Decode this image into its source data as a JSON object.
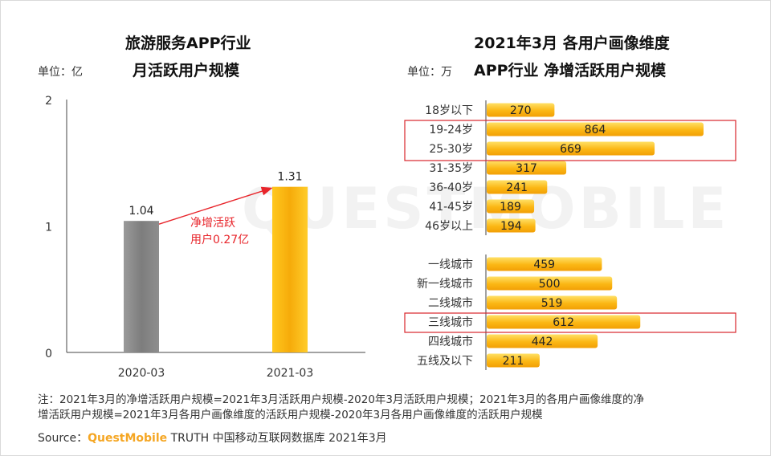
{
  "left_chart": {
    "title_line1": "旅游服务APP行业",
    "title_line2": "月活跃用户规模",
    "unit": "单位：亿"
  },
  "right_chart": {
    "title_line1": "2021年3月 各用户画像维度",
    "title_line2": "APP行业 净增活跃用户规模",
    "unit": "单位：万"
  },
  "watermark": "QUESTMOBILE",
  "colors": {
    "gray_bar": "#8a8a8a",
    "gold_bar": "#fbb714",
    "gold_light": "#ffd84a",
    "highlight_red": "#d9262b",
    "arrow_red": "#e8252b"
  },
  "chart_data": [
    {
      "type": "bar",
      "title": "旅游服务APP行业 月活跃用户规模",
      "ylabel": "单位：亿",
      "categories": [
        "2020-03",
        "2021-03"
      ],
      "values": [
        1.04,
        1.31
      ],
      "value_labels": [
        "1.04",
        "1.31"
      ],
      "ylim": [
        0,
        2
      ],
      "yticks": [
        "0",
        "1",
        "2"
      ],
      "annotation": {
        "line1": "净增活跃",
        "line2": "用户0.27亿"
      }
    },
    {
      "type": "bar",
      "orientation": "horizontal",
      "title": "2021年3月 各用户画像维度 APP行业 净增活跃用户规模",
      "unit": "单位：万",
      "groups": [
        {
          "name": "age",
          "categories": [
            "18岁以下",
            "19-24岁",
            "25-30岁",
            "31-35岁",
            "36-40岁",
            "41-45岁",
            "46岁以上"
          ],
          "values": [
            270,
            864,
            669,
            317,
            241,
            189,
            194
          ]
        },
        {
          "name": "city",
          "categories": [
            "一线城市",
            "新一线城市",
            "二线城市",
            "三线城市",
            "四线城市",
            "五线及以下"
          ],
          "values": [
            459,
            500,
            519,
            612,
            442,
            211
          ]
        }
      ],
      "highlighted": [
        "19-24岁",
        "25-30岁",
        "三线城市"
      ]
    }
  ],
  "footer": {
    "note_line1": "注：2021年3月的净增活跃用户规模=2021年3月活跃用户规模-2020年3月活跃用户规模；2021年3月的各用户画像维度的净",
    "note_line2": "增活跃用户规模=2021年3月各用户画像维度的活跃用户规模-2020年3月各用户画像维度的活跃用户规模",
    "source_label": "Source：",
    "source_brand": "QuestMobile",
    "source_rest": " TRUTH 中国移动互联网数据库 2021年3月"
  }
}
